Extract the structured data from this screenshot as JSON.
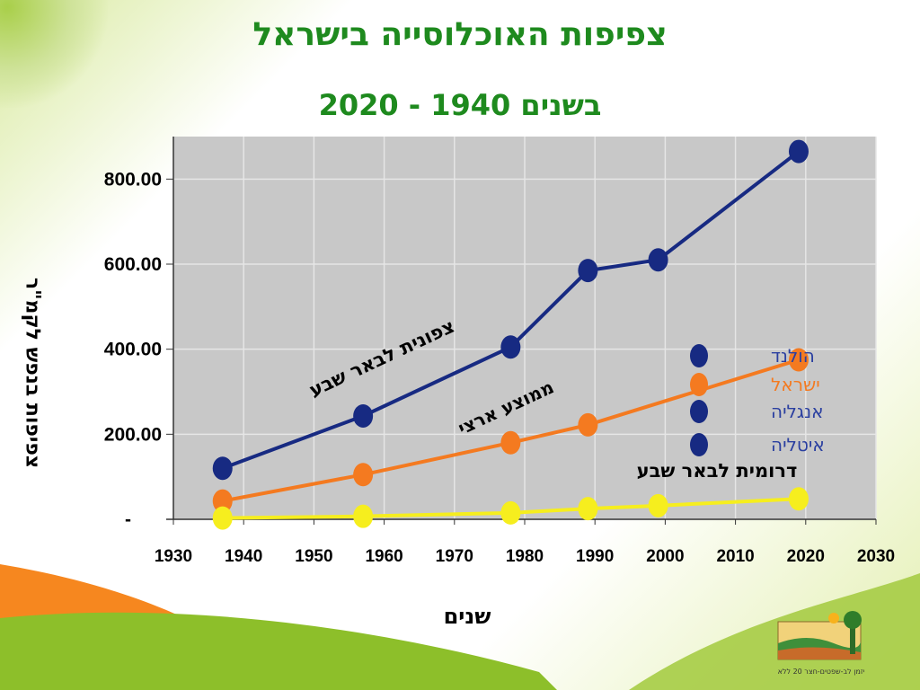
{
  "slide": {
    "title": "צפיפות האוכלוסייה בישראל",
    "subtitle": "בשנים 1940 - 2020"
  },
  "chart_data": {
    "type": "line",
    "title": "צפיפות האוכלוסייה בישראל",
    "subtitle": "בשנים 1940 - 2020",
    "xlabel": "שנים",
    "ylabel": "צפיפות בנפש לקמ\"ר",
    "xlim": [
      1930,
      2030
    ],
    "ylim": [
      0,
      900
    ],
    "x_ticks": [
      1930,
      1940,
      1950,
      1960,
      1970,
      1980,
      1990,
      2000,
      2010,
      2020,
      2030
    ],
    "x_tick_labels": [
      "1930",
      "1940",
      "1950",
      "1960",
      "1970",
      "1980",
      "1990",
      "2000",
      "2010",
      "2020",
      "2030"
    ],
    "y_ticks": [
      0,
      200,
      400,
      600,
      800
    ],
    "y_tick_labels": [
      "-",
      "200.00",
      "400.00",
      "600.00",
      "800.00"
    ],
    "grid": true,
    "background": "#c8c8c8",
    "series": [
      {
        "label": "צפונית לבאר שבע",
        "color": "#172a82",
        "x": [
          1937,
          1957,
          1978,
          1989,
          1999,
          2019
        ],
        "y": [
          120,
          243,
          405,
          585,
          610,
          865
        ]
      },
      {
        "label": "ממוצע ארצי",
        "color": "#f47a20",
        "x": [
          1937,
          1957,
          1978,
          1989,
          2019
        ],
        "y": [
          43,
          105,
          180,
          222,
          375
        ]
      },
      {
        "label": "דרומית לבאר שבע",
        "color": "#f6ee1e",
        "x": [
          1937,
          1957,
          1978,
          1989,
          1999,
          2019
        ],
        "y": [
          3,
          7,
          15,
          25,
          32,
          48
        ]
      }
    ],
    "legend": {
      "placement": "right",
      "entries": [
        {
          "label": "הולנד",
          "marker_color": "#172a82",
          "text_color": "#2a3fa0"
        },
        {
          "label": "ישראל",
          "marker_color": "#f47a20",
          "text_color": "#f47a20"
        },
        {
          "label": "אנגליה",
          "marker_color": "#172a82",
          "text_color": "#2a3fa0"
        },
        {
          "label": "איטליה",
          "marker_color": "#172a82",
          "text_color": "#2a3fa0"
        }
      ]
    },
    "annotations": [
      {
        "text": "צפונית לבאר שבע",
        "color": "#000000"
      },
      {
        "text": "ממוצע ארצי",
        "color": "#000000"
      },
      {
        "text": "דרומית לבאר שבע",
        "color": "#000000"
      }
    ]
  },
  "logo": {
    "caption": "יזמן לב-שפטים-חצר 20 ללא"
  }
}
